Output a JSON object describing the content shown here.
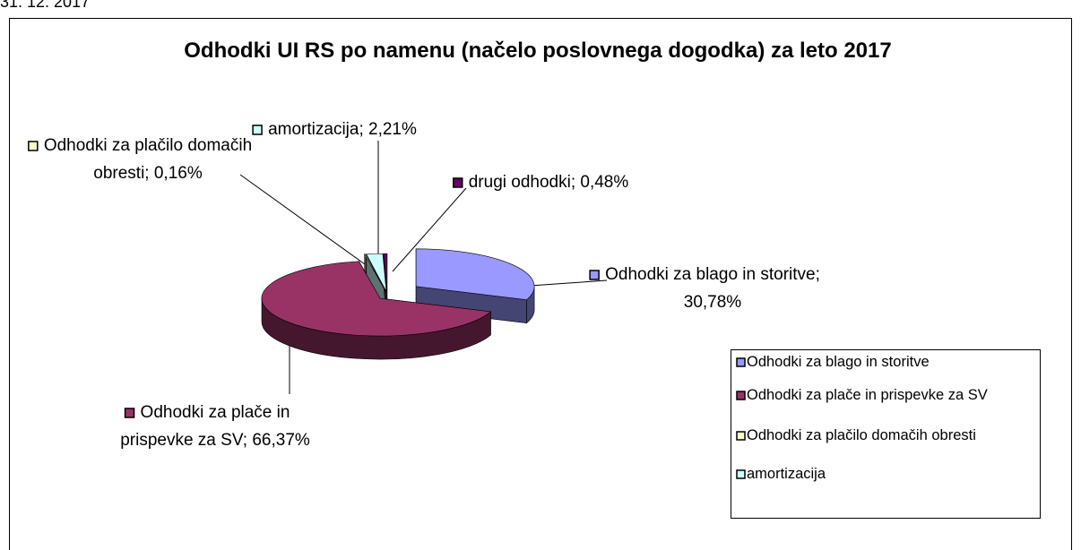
{
  "date_note": "31. 12. 2017",
  "chart_data": {
    "type": "pie",
    "title": "Odhodki UI RS po namenu (načelo poslovnega dogodka) za leto 2017",
    "categories": [
      "Odhodki za blago in storitve",
      "Odhodki za plače in prispevke za SV",
      "Odhodki za plačilo domačih obresti",
      "amortizacija",
      "drugi odhodki"
    ],
    "values": [
      30.78,
      66.37,
      0.16,
      2.21,
      0.48
    ],
    "value_labels": [
      "Odhodki za blago in storitve; 30,78%",
      "Odhodki za plače in prispevke za SV; 66,37%",
      "Odhodki za plačilo domačih obresti; 0,16%",
      "amortizacija; 2,21%",
      "drugi odhodki; 0,48%"
    ],
    "colors": [
      "#9999ff",
      "#993366",
      "#ffffcc",
      "#ccffff",
      "#660066"
    ],
    "legend": [
      "Odhodki za blago in storitve",
      "Odhodki za plače in prispevke za SV",
      "Odhodki za plačilo domačih obresti",
      "amortizacija"
    ],
    "legend_position": "right"
  }
}
